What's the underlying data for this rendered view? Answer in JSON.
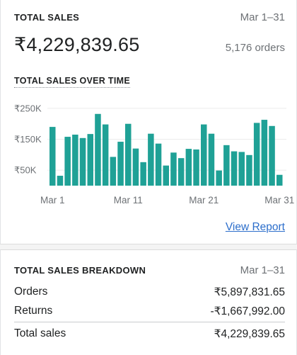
{
  "summary": {
    "title": "TOTAL SALES",
    "date_range": "Mar 1–31",
    "total": "₹4,229,839.65",
    "orders": "5,176 orders"
  },
  "chart_section": {
    "title": "TOTAL SALES OVER TIME",
    "link": "View Report"
  },
  "chart_data": {
    "type": "bar",
    "color": "#1fa196",
    "ylim": [
      0,
      275000
    ],
    "yticks": [
      {
        "value": 250000,
        "label": "₹250K"
      },
      {
        "value": 150000,
        "label": "₹150K"
      },
      {
        "value": 50000,
        "label": "₹50K"
      }
    ],
    "xticks": [
      {
        "day": 1,
        "label": "Mar 1"
      },
      {
        "day": 11,
        "label": "Mar 11"
      },
      {
        "day": 21,
        "label": "Mar 21"
      },
      {
        "day": 31,
        "label": "Mar 31"
      }
    ],
    "categories": [
      "Mar 1",
      "Mar 2",
      "Mar 3",
      "Mar 4",
      "Mar 5",
      "Mar 6",
      "Mar 7",
      "Mar 8",
      "Mar 9",
      "Mar 10",
      "Mar 11",
      "Mar 12",
      "Mar 13",
      "Mar 14",
      "Mar 15",
      "Mar 16",
      "Mar 17",
      "Mar 18",
      "Mar 19",
      "Mar 20",
      "Mar 21",
      "Mar 22",
      "Mar 23",
      "Mar 24",
      "Mar 25",
      "Mar 26",
      "Mar 27",
      "Mar 28",
      "Mar 29",
      "Mar 30",
      "Mar 31"
    ],
    "values": [
      190000,
      32000,
      158000,
      165000,
      154000,
      167000,
      232000,
      198000,
      93000,
      142000,
      200000,
      120000,
      76000,
      168000,
      136000,
      65000,
      107000,
      89000,
      119000,
      117000,
      198000,
      168000,
      49000,
      131000,
      111000,
      109000,
      99000,
      203000,
      213000,
      193000,
      35000
    ]
  },
  "breakdown": {
    "title": "TOTAL SALES BREAKDOWN",
    "date_range": "Mar 1–31",
    "rows": [
      {
        "label": "Orders",
        "value": "₹5,897,831.65"
      },
      {
        "label": "Returns",
        "value": "-₹1,667,992.00"
      }
    ],
    "total": {
      "label": "Total sales",
      "value": "₹4,229,839.65"
    }
  }
}
